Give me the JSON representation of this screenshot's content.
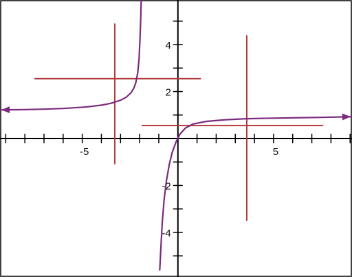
{
  "chart_data": {
    "type": "line",
    "title": "",
    "xlabel": "",
    "ylabel": "",
    "xlim": [
      -9.3,
      9.1
    ],
    "ylim": [
      -5.9,
      5.9
    ],
    "grid": false,
    "x_ticks": [
      -9,
      -8,
      -7,
      -6,
      -5,
      -4,
      -3,
      -2,
      -1,
      1,
      2,
      3,
      4,
      5,
      6,
      7,
      8,
      9
    ],
    "y_ticks": [
      -5,
      -4,
      -3,
      -2,
      -1,
      1,
      2,
      3,
      4,
      5
    ],
    "x_tick_labels": [
      {
        "value": -5,
        "text": "-5"
      },
      {
        "value": 5,
        "text": "5"
      }
    ],
    "y_tick_labels": [
      {
        "value": 4,
        "text": "4"
      },
      {
        "value": 2,
        "text": "2"
      },
      {
        "value": -2,
        "text": "-2"
      },
      {
        "value": -4,
        "text": "-4"
      }
    ],
    "curves": [
      {
        "points": [
          [
            -9.3,
            1.22
          ],
          [
            -8,
            1.23
          ],
          [
            -7,
            1.25
          ],
          [
            -6,
            1.28
          ],
          [
            -5,
            1.33
          ],
          [
            -4.5,
            1.37
          ],
          [
            -4,
            1.42
          ],
          [
            -3.5,
            1.5
          ],
          [
            -3,
            1.63
          ],
          [
            -2.7,
            1.76
          ],
          [
            -2.45,
            1.95
          ],
          [
            -2.3,
            2.15
          ],
          [
            -2.2,
            2.38
          ],
          [
            -2.1,
            2.8
          ],
          [
            -2.03,
            3.4
          ],
          [
            -1.98,
            4.3
          ],
          [
            -1.94,
            5.2
          ],
          [
            -1.92,
            5.9
          ]
        ],
        "arrow_start": true,
        "arrow_end": false,
        "color": "#7b2a7d"
      },
      {
        "points": [
          [
            -0.95,
            -5.6
          ],
          [
            -0.9,
            -4.8
          ],
          [
            -0.82,
            -3.6
          ],
          [
            -0.72,
            -2.6
          ],
          [
            -0.6,
            -1.8
          ],
          [
            -0.45,
            -1.1
          ],
          [
            -0.3,
            -0.6
          ],
          [
            -0.1,
            -0.15
          ],
          [
            0.1,
            0.18
          ],
          [
            0.4,
            0.45
          ],
          [
            0.8,
            0.62
          ],
          [
            1.5,
            0.73
          ],
          [
            2.5,
            0.8
          ],
          [
            3.5,
            0.84
          ],
          [
            4.5,
            0.86
          ],
          [
            6,
            0.88
          ],
          [
            7.5,
            0.9
          ],
          [
            9.1,
            0.93
          ]
        ],
        "arrow_start": false,
        "arrow_end": true,
        "color": "#7b2a7d"
      }
    ],
    "reference_segments": [
      {
        "x1": -3.3,
        "y1": 4.9,
        "x2": -3.3,
        "y2": -1.1,
        "color": "#b23a3a"
      },
      {
        "x1": -7.5,
        "y1": 2.55,
        "x2": 1.2,
        "y2": 2.55,
        "color": "#b23a3a"
      },
      {
        "x1": 3.6,
        "y1": 4.4,
        "x2": 3.6,
        "y2": -3.5,
        "color": "#b23a3a"
      },
      {
        "x1": -1.9,
        "y1": 0.55,
        "x2": 7.6,
        "y2": 0.55,
        "color": "#b23a3a"
      }
    ],
    "axis_color": "#000000",
    "frame_color": "#000000"
  }
}
